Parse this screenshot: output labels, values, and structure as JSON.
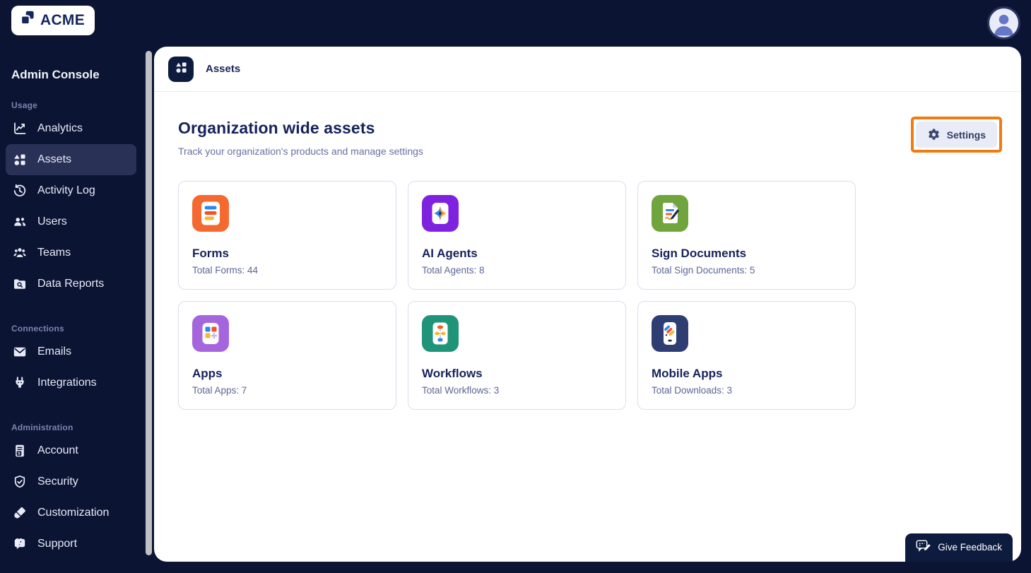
{
  "topbar": {
    "logo_text": "ACME",
    "logo_icon": "acme-logo-icon",
    "avatar_icon": "person-icon"
  },
  "sidebar": {
    "title": "Admin Console",
    "collapse_icon": "chevrons-left-icon",
    "sections": [
      {
        "label": "Usage",
        "items": [
          {
            "label": "Analytics",
            "icon": "analytics-icon",
            "active": false
          },
          {
            "label": "Assets",
            "icon": "assets-icon",
            "active": true
          },
          {
            "label": "Activity Log",
            "icon": "activity-log-icon",
            "active": false
          },
          {
            "label": "Users",
            "icon": "users-icon",
            "active": false
          },
          {
            "label": "Teams",
            "icon": "teams-icon",
            "active": false
          },
          {
            "label": "Data Reports",
            "icon": "data-reports-icon",
            "active": false
          }
        ]
      },
      {
        "label": "Connections",
        "items": [
          {
            "label": "Emails",
            "icon": "emails-icon",
            "active": false
          },
          {
            "label": "Integrations",
            "icon": "integrations-icon",
            "active": false
          }
        ]
      },
      {
        "label": "Administration",
        "items": [
          {
            "label": "Account",
            "icon": "account-icon",
            "active": false
          },
          {
            "label": "Security",
            "icon": "security-icon",
            "active": false
          },
          {
            "label": "Customization",
            "icon": "customization-icon",
            "active": false
          },
          {
            "label": "Support",
            "icon": "support-icon",
            "active": false
          }
        ]
      }
    ]
  },
  "main": {
    "breadcrumb": {
      "icon": "assets-icon",
      "label": "Assets"
    },
    "page": {
      "title": "Organization wide assets",
      "subtitle": "Track your organization's products and manage settings"
    },
    "settings_button": {
      "label": "Settings",
      "icon": "gear-icon",
      "highlighted": true,
      "highlight_color": "#f07b12"
    },
    "cards": [
      {
        "title": "Forms",
        "stat": "Total Forms: 44",
        "tile": "forms-tile",
        "tile_color": "#f4692f"
      },
      {
        "title": "AI Agents",
        "stat": "Total Agents: 8",
        "tile": "ai-agents-tile",
        "tile_color": "#7e22e0"
      },
      {
        "title": "Sign Documents",
        "stat": "Total Sign Documents: 5",
        "tile": "sign-documents-tile",
        "tile_color": "#70a53d"
      },
      {
        "title": "Apps",
        "stat": "Total Apps: 7",
        "tile": "apps-tile",
        "tile_color": "#a566dd"
      },
      {
        "title": "Workflows",
        "stat": "Total Workflows: 3",
        "tile": "workflows-tile",
        "tile_color": "#1f9478"
      },
      {
        "title": "Mobile Apps",
        "stat": "Total Downloads: 3",
        "tile": "mobile-apps-tile",
        "tile_color": "#2f3e72"
      }
    ],
    "feedback_button": {
      "label": "Give Feedback",
      "icon": "feedback-icon"
    }
  },
  "colors": {
    "background": "#0c1434",
    "active_item_bg": "#2a3157",
    "panel_bg": "#ffffff",
    "title_text": "#16235b",
    "muted_text": "#5c6596",
    "card_border": "#d9def2",
    "highlight_orange": "#f07b12",
    "feedback_bg": "#0d1b3e"
  }
}
